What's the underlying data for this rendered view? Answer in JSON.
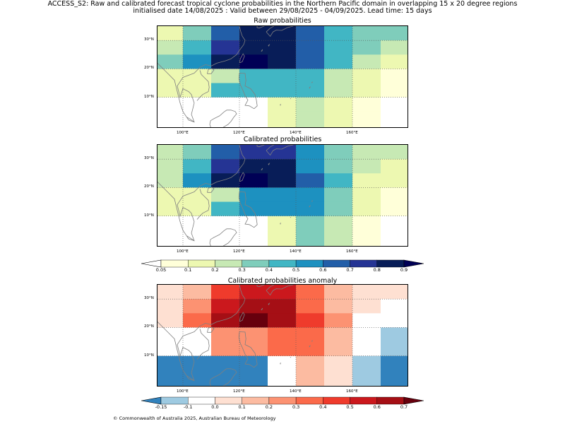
{
  "title": {
    "line1": "ACCESS_S2: Raw and calibrated forecast tropical cyclone probabilities in the Northern Pacific domain in overlapping 15 x 20 degree regions",
    "line2": "initialised date 14/08/2025 :  Valid between 29/08/2025 - 04/09/2025. Lead time: 15 days"
  },
  "map_axes": {
    "lon_ticks": [
      "100°E",
      "120°E",
      "140°E",
      "160°E"
    ],
    "lat_ticks": [
      "30°N",
      "20°N",
      "10°N"
    ],
    "gridline_lons": [
      100,
      120,
      140,
      160
    ],
    "gridline_lats": [
      10,
      20,
      30
    ],
    "lon_range": [
      91,
      180
    ],
    "lat_range": [
      -1,
      35
    ]
  },
  "chart_data": [
    {
      "type": "heatmap",
      "title": "Raw probabilities",
      "lon_edges": [
        91,
        100,
        110,
        120,
        130,
        140,
        150,
        160,
        170,
        180
      ],
      "lat_edges": [
        35,
        30,
        25,
        20,
        15,
        10,
        5,
        -1
      ],
      "values": [
        [
          0.15,
          0.35,
          0.65,
          0.85,
          0.85,
          0.65,
          0.45,
          0.35,
          0.35
        ],
        [
          0.25,
          0.45,
          0.75,
          0.85,
          0.85,
          0.65,
          0.45,
          0.35,
          0.25
        ],
        [
          0.35,
          0.55,
          0.85,
          0.95,
          0.85,
          0.65,
          0.45,
          0.25,
          0.15
        ],
        [
          0.15,
          0.15,
          0.25,
          0.45,
          0.45,
          0.45,
          0.25,
          0.15,
          0.07
        ],
        [
          0.15,
          0.15,
          0.45,
          0.45,
          0.45,
          0.45,
          0.25,
          0.15,
          0.07
        ],
        [
          0.03,
          0.03,
          0.03,
          0.03,
          0.15,
          0.25,
          0.15,
          0.07,
          0.03
        ],
        [
          0.03,
          0.03,
          0.03,
          0.03,
          0.15,
          0.25,
          0.15,
          0.07,
          0.03
        ]
      ]
    },
    {
      "type": "heatmap",
      "title": "Calibrated probabilities",
      "lon_edges": [
        91,
        100,
        110,
        120,
        130,
        140,
        150,
        160,
        170,
        180
      ],
      "lat_edges": [
        35,
        30,
        25,
        20,
        15,
        10,
        5,
        -1
      ],
      "values": [
        [
          0.25,
          0.35,
          0.65,
          0.75,
          0.75,
          0.55,
          0.35,
          0.25,
          0.25
        ],
        [
          0.25,
          0.45,
          0.75,
          0.85,
          0.85,
          0.55,
          0.35,
          0.25,
          0.15
        ],
        [
          0.25,
          0.55,
          0.85,
          0.95,
          0.85,
          0.65,
          0.45,
          0.15,
          0.15
        ],
        [
          0.15,
          0.15,
          0.25,
          0.55,
          0.55,
          0.55,
          0.35,
          0.15,
          0.07
        ],
        [
          0.15,
          0.15,
          0.45,
          0.55,
          0.55,
          0.55,
          0.35,
          0.15,
          0.07
        ],
        [
          0.03,
          0.03,
          0.03,
          0.03,
          0.15,
          0.35,
          0.25,
          0.07,
          0.03
        ],
        [
          0.03,
          0.03,
          0.03,
          0.03,
          0.15,
          0.35,
          0.25,
          0.07,
          0.03
        ]
      ]
    },
    {
      "type": "heatmap",
      "title": "Calibrated probabilities anomaly",
      "lon_edges": [
        91,
        100,
        110,
        120,
        130,
        140,
        150,
        160,
        170,
        180
      ],
      "lat_edges": [
        35,
        30,
        25,
        20,
        15,
        10,
        5,
        -1
      ],
      "values": [
        [
          0.05,
          0.15,
          0.45,
          0.55,
          0.55,
          0.35,
          0.15,
          0.05,
          0.05
        ],
        [
          0.05,
          0.25,
          0.55,
          0.65,
          0.65,
          0.35,
          0.15,
          0.05,
          -0.05
        ],
        [
          0.05,
          0.35,
          0.65,
          0.75,
          0.65,
          0.45,
          0.25,
          -0.05,
          -0.05
        ],
        [
          -0.05,
          -0.05,
          0.25,
          0.25,
          0.35,
          0.35,
          0.15,
          -0.05,
          -0.12
        ],
        [
          -0.05,
          -0.05,
          0.25,
          0.25,
          0.35,
          0.35,
          0.15,
          -0.05,
          -0.12
        ],
        [
          -0.2,
          -0.2,
          -0.2,
          -0.2,
          -0.05,
          0.15,
          0.05,
          -0.12,
          -0.2
        ],
        [
          -0.2,
          -0.2,
          -0.2,
          -0.2,
          -0.05,
          0.15,
          0.05,
          -0.12,
          -0.2
        ]
      ]
    }
  ],
  "colorbars": [
    {
      "ticks": [
        "0.05",
        "0.1",
        "0.2",
        "0.3",
        "0.4",
        "0.5",
        "0.6",
        "0.7",
        "0.8",
        "0.9"
      ],
      "bounds": [
        0.05,
        0.1,
        0.2,
        0.3,
        0.4,
        0.5,
        0.6,
        0.7,
        0.8,
        0.9
      ],
      "colors": [
        "#ffffd9",
        "#edf8b1",
        "#c7e9b4",
        "#7fcdbb",
        "#41b6c4",
        "#1d91c0",
        "#225ea8",
        "#253494",
        "#081d58"
      ],
      "under": "#ffffff",
      "over": "#000055"
    },
    {
      "ticks": [
        "-0.15",
        "-0.1",
        "0.0",
        "0.1",
        "0.2",
        "0.3",
        "0.4",
        "0.5",
        "0.6",
        "0.7"
      ],
      "bounds": [
        -0.15,
        -0.1,
        0.0,
        0.1,
        0.2,
        0.3,
        0.4,
        0.5,
        0.6,
        0.7
      ],
      "colors": [
        "#9ecae1",
        "#ffffff",
        "#fee0d2",
        "#fcbba1",
        "#fc9272",
        "#fb6a4a",
        "#ef3b2c",
        "#cb181d",
        "#a50f15"
      ],
      "under": "#3182bd",
      "over": "#67000d"
    }
  ],
  "coastline_color": "#808080",
  "copyright": "© Commonwealth of Australia 2025, Australian Bureau of Meteorology"
}
